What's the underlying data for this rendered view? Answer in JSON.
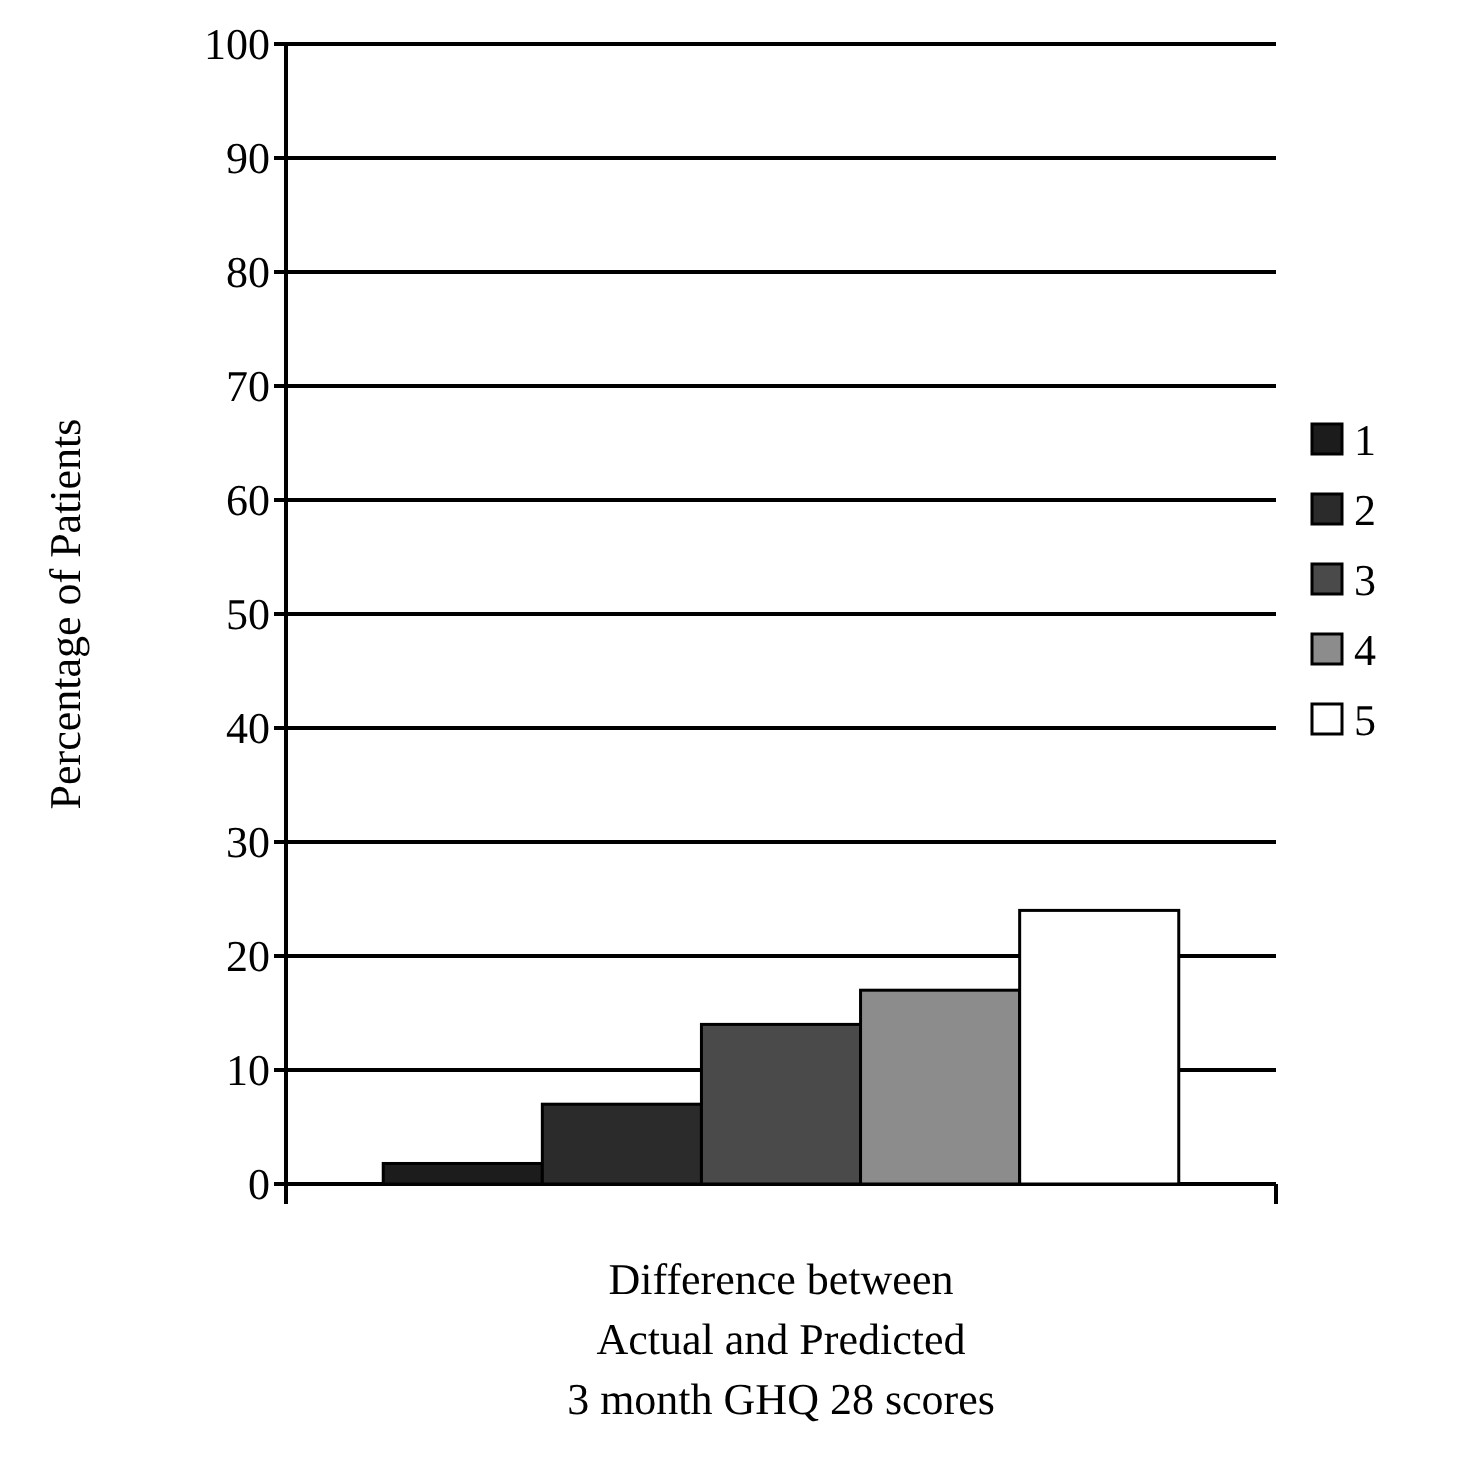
{
  "chart_data": {
    "type": "bar",
    "xlabel": "Difference between\nActual and Predicted\n3 month GHQ 28 scores",
    "ylabel": "Percentage of Patients",
    "categories": [
      null
    ],
    "series": [
      {
        "name": "1",
        "color": "#1c1c1c",
        "values": [
          1.8
        ]
      },
      {
        "name": "2",
        "color": "#2b2b2b",
        "values": [
          7
        ]
      },
      {
        "name": "3",
        "color": "#4a4a4a",
        "values": [
          14
        ]
      },
      {
        "name": "4",
        "color": "#8c8c8c",
        "values": [
          17
        ]
      },
      {
        "name": "5",
        "color": "#ffffff",
        "values": [
          24
        ]
      }
    ],
    "ylim": [
      0,
      100
    ],
    "yticks": [
      0,
      10,
      20,
      30,
      40,
      50,
      60,
      70,
      80,
      90,
      100
    ],
    "grid": "y",
    "legend": "right"
  }
}
